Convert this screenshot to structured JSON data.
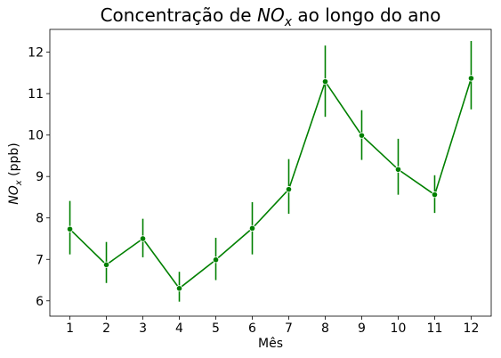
{
  "chart_data": {
    "type": "line",
    "title": {
      "prefix": "Concentração de ",
      "symbol": "NO",
      "subscript": "x",
      "suffix": " ao longo do ano"
    },
    "ylabel": {
      "symbol": "NO",
      "subscript": "x",
      "suffix": " (ppb)"
    },
    "xlabel": "Mês",
    "x": [
      1,
      2,
      3,
      4,
      5,
      6,
      7,
      8,
      9,
      10,
      11,
      12
    ],
    "xticks": [
      "1",
      "2",
      "3",
      "4",
      "5",
      "6",
      "7",
      "8",
      "9",
      "10",
      "11",
      "12"
    ],
    "yticks": [
      "6",
      "7",
      "8",
      "9",
      "10",
      "11",
      "12"
    ],
    "series": [
      {
        "values": [
          7.73,
          6.87,
          7.5,
          6.3,
          6.99,
          7.75,
          8.69,
          11.29,
          9.99,
          9.17,
          8.56,
          11.37
        ],
        "err_low": [
          7.12,
          6.43,
          7.05,
          5.98,
          6.5,
          7.12,
          8.1,
          10.44,
          9.4,
          8.56,
          8.12,
          10.62
        ],
        "err_high": [
          8.41,
          7.42,
          7.98,
          6.7,
          7.52,
          8.38,
          9.42,
          12.16,
          10.6,
          9.91,
          9.03,
          12.27
        ]
      }
    ],
    "xlim": [
      0.45,
      12.55
    ],
    "ylim": [
      5.63,
      12.55
    ],
    "grid": false,
    "line_color": "#008000"
  }
}
